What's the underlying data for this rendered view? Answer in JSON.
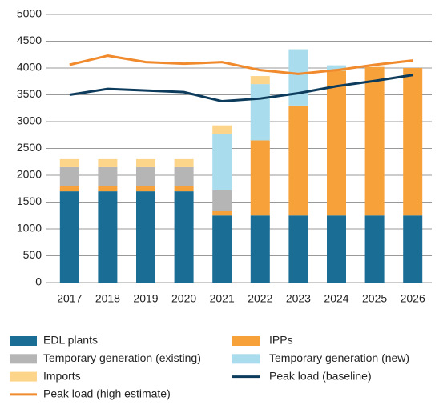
{
  "chart_data": {
    "type": "bar",
    "stacked": true,
    "categories": [
      "2017",
      "2018",
      "2019",
      "2020",
      "2021",
      "2022",
      "2023",
      "2024",
      "2025",
      "2026"
    ],
    "series": [
      {
        "name": "EDL plants",
        "color": "#1a6e96",
        "values": [
          1700,
          1700,
          1700,
          1700,
          1250,
          1250,
          1250,
          1250,
          1250,
          1250
        ]
      },
      {
        "name": "IPPs",
        "color": "#f7a13a",
        "values": [
          100,
          100,
          100,
          100,
          80,
          1400,
          2050,
          2700,
          2770,
          2750
        ]
      },
      {
        "name": "Temporary generation (existing)",
        "color": "#b5b5b5",
        "values": [
          350,
          350,
          350,
          350,
          390,
          0,
          0,
          0,
          0,
          0
        ]
      },
      {
        "name": "Temporary generation (new)",
        "color": "#a9dcec",
        "values": [
          0,
          0,
          0,
          0,
          1050,
          1050,
          1050,
          100,
          0,
          0
        ]
      },
      {
        "name": "Imports",
        "color": "#fdd58a",
        "values": [
          150,
          150,
          150,
          150,
          160,
          150,
          0,
          0,
          0,
          0
        ]
      },
      {
        "name": "Peak load (baseline)",
        "type": "line",
        "color": "#0d3b5c",
        "values": [
          3500,
          3610,
          3580,
          3550,
          3380,
          3430,
          3530,
          3660,
          3760,
          3870
        ]
      },
      {
        "name": "Peak load (high estimate)",
        "type": "line",
        "color": "#f08a2c",
        "values": [
          4060,
          4230,
          4110,
          4080,
          4110,
          3960,
          3890,
          3960,
          4060,
          4140
        ]
      }
    ],
    "ylim": [
      0,
      5000
    ],
    "yticks": [
      0,
      500,
      1000,
      1500,
      2000,
      2500,
      3000,
      3500,
      4000,
      4500,
      5000
    ],
    "grid": true
  }
}
